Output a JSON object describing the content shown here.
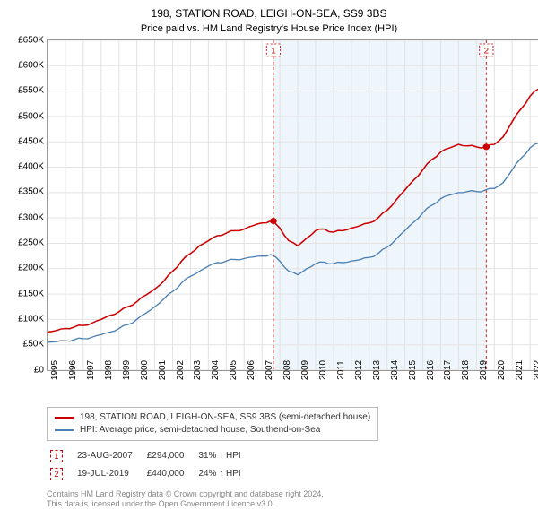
{
  "title": "198, STATION ROAD, LEIGH-ON-SEA, SS9 3BS",
  "subtitle": "Price paid vs. HM Land Registry's House Price Index (HPI)",
  "chart": {
    "type": "line",
    "background_color": "#ffffff",
    "grid_color": "#e3e3e3",
    "border_color": "#999999",
    "ylim": [
      0,
      650000
    ],
    "ytick_step": 50000,
    "ytick_labels": [
      "£0",
      "£50K",
      "£100K",
      "£150K",
      "£200K",
      "£250K",
      "£300K",
      "£350K",
      "£400K",
      "£450K",
      "£500K",
      "£550K",
      "£600K",
      "£650K"
    ],
    "xlim": [
      1995,
      2024
    ],
    "xtick_years": [
      1995,
      1996,
      1997,
      1998,
      1999,
      2000,
      2001,
      2002,
      2003,
      2004,
      2005,
      2006,
      2007,
      2008,
      2009,
      2010,
      2011,
      2012,
      2013,
      2014,
      2015,
      2016,
      2017,
      2018,
      2019,
      2020,
      2021,
      2022,
      2023
    ],
    "shaded_range": {
      "start": 2007.64,
      "end": 2019.55,
      "color": "#eef5fb"
    },
    "series": [
      {
        "name": "property",
        "label": "198, STATION ROAD, LEIGH-ON-SEA, SS9 3BS (semi-detached house)",
        "color": "#cc0000",
        "line_width": 1.5,
        "points": [
          [
            1995,
            75000
          ],
          [
            1995.5,
            78000
          ],
          [
            1996,
            82000
          ],
          [
            1996.5,
            85000
          ],
          [
            1997,
            88000
          ],
          [
            1997.5,
            93000
          ],
          [
            1998,
            100000
          ],
          [
            1998.5,
            108000
          ],
          [
            1999,
            115000
          ],
          [
            1999.5,
            125000
          ],
          [
            2000,
            135000
          ],
          [
            2000.5,
            148000
          ],
          [
            2001,
            160000
          ],
          [
            2001.5,
            175000
          ],
          [
            2002,
            195000
          ],
          [
            2002.5,
            215000
          ],
          [
            2003,
            230000
          ],
          [
            2003.5,
            245000
          ],
          [
            2004,
            255000
          ],
          [
            2004.5,
            265000
          ],
          [
            2005,
            270000
          ],
          [
            2005.5,
            275000
          ],
          [
            2006,
            278000
          ],
          [
            2006.5,
            285000
          ],
          [
            2007,
            290000
          ],
          [
            2007.5,
            294000
          ],
          [
            2008,
            280000
          ],
          [
            2008.5,
            255000
          ],
          [
            2009,
            245000
          ],
          [
            2009.5,
            260000
          ],
          [
            2010,
            275000
          ],
          [
            2010.5,
            278000
          ],
          [
            2011,
            272000
          ],
          [
            2011.5,
            275000
          ],
          [
            2012,
            280000
          ],
          [
            2012.5,
            285000
          ],
          [
            2013,
            290000
          ],
          [
            2013.5,
            300000
          ],
          [
            2014,
            315000
          ],
          [
            2014.5,
            335000
          ],
          [
            2015,
            355000
          ],
          [
            2015.5,
            375000
          ],
          [
            2016,
            395000
          ],
          [
            2016.5,
            415000
          ],
          [
            2017,
            430000
          ],
          [
            2017.5,
            438000
          ],
          [
            2018,
            445000
          ],
          [
            2018.5,
            442000
          ],
          [
            2019,
            440000
          ],
          [
            2019.5,
            440000
          ],
          [
            2020,
            445000
          ],
          [
            2020.5,
            460000
          ],
          [
            2021,
            490000
          ],
          [
            2021.5,
            515000
          ],
          [
            2022,
            540000
          ],
          [
            2022.5,
            555000
          ],
          [
            2023,
            560000
          ],
          [
            2023.5,
            545000
          ],
          [
            2024,
            530000
          ]
        ]
      },
      {
        "name": "hpi",
        "label": "HPI: Average price, semi-detached house, Southend-on-Sea",
        "color": "#4a7fb5",
        "line_width": 1.3,
        "points": [
          [
            1995,
            55000
          ],
          [
            1995.5,
            56000
          ],
          [
            1996,
            58000
          ],
          [
            1996.5,
            60000
          ],
          [
            1997,
            62000
          ],
          [
            1997.5,
            65000
          ],
          [
            1998,
            70000
          ],
          [
            1998.5,
            75000
          ],
          [
            1999,
            82000
          ],
          [
            1999.5,
            90000
          ],
          [
            2000,
            100000
          ],
          [
            2000.5,
            112000
          ],
          [
            2001,
            125000
          ],
          [
            2001.5,
            140000
          ],
          [
            2002,
            155000
          ],
          [
            2002.5,
            172000
          ],
          [
            2003,
            185000
          ],
          [
            2003.5,
            195000
          ],
          [
            2004,
            205000
          ],
          [
            2004.5,
            212000
          ],
          [
            2005,
            215000
          ],
          [
            2005.5,
            218000
          ],
          [
            2006,
            220000
          ],
          [
            2006.5,
            223000
          ],
          [
            2007,
            225000
          ],
          [
            2007.5,
            228000
          ],
          [
            2008,
            215000
          ],
          [
            2008.5,
            195000
          ],
          [
            2009,
            188000
          ],
          [
            2009.5,
            200000
          ],
          [
            2010,
            210000
          ],
          [
            2010.5,
            213000
          ],
          [
            2011,
            210000
          ],
          [
            2011.5,
            212000
          ],
          [
            2012,
            215000
          ],
          [
            2012.5,
            218000
          ],
          [
            2013,
            222000
          ],
          [
            2013.5,
            230000
          ],
          [
            2014,
            242000
          ],
          [
            2014.5,
            258000
          ],
          [
            2015,
            275000
          ],
          [
            2015.5,
            292000
          ],
          [
            2016,
            310000
          ],
          [
            2016.5,
            325000
          ],
          [
            2017,
            338000
          ],
          [
            2017.5,
            345000
          ],
          [
            2018,
            350000
          ],
          [
            2018.5,
            352000
          ],
          [
            2019,
            352000
          ],
          [
            2019.5,
            355000
          ],
          [
            2020,
            358000
          ],
          [
            2020.5,
            370000
          ],
          [
            2021,
            395000
          ],
          [
            2021.5,
            418000
          ],
          [
            2022,
            438000
          ],
          [
            2022.5,
            448000
          ],
          [
            2023,
            450000
          ],
          [
            2023.5,
            442000
          ],
          [
            2024,
            435000
          ]
        ]
      }
    ],
    "sale_markers": [
      {
        "index": "1",
        "year": 2007.64,
        "price": 294000
      },
      {
        "index": "2",
        "year": 2019.55,
        "price": 440000
      }
    ],
    "marker_dot_color": "#cc0000",
    "marker_box_border": "#cc0000",
    "marker_guide_color": "#cc0000"
  },
  "legend": {
    "series1_color": "#cc0000",
    "series1_label": "198, STATION ROAD, LEIGH-ON-SEA, SS9 3BS (semi-detached house)",
    "series2_color": "#4a7fb5",
    "series2_label": "HPI: Average price, semi-detached house, Southend-on-Sea"
  },
  "sales": [
    {
      "index": "1",
      "date": "23-AUG-2007",
      "price": "£294,000",
      "vs_hpi": "31% ↑ HPI"
    },
    {
      "index": "2",
      "date": "19-JUL-2019",
      "price": "£440,000",
      "vs_hpi": "24% ↑ HPI"
    }
  ],
  "footer": {
    "line1": "Contains HM Land Registry data © Crown copyright and database right 2024.",
    "line2": "This data is licensed under the Open Government Licence v3.0."
  }
}
